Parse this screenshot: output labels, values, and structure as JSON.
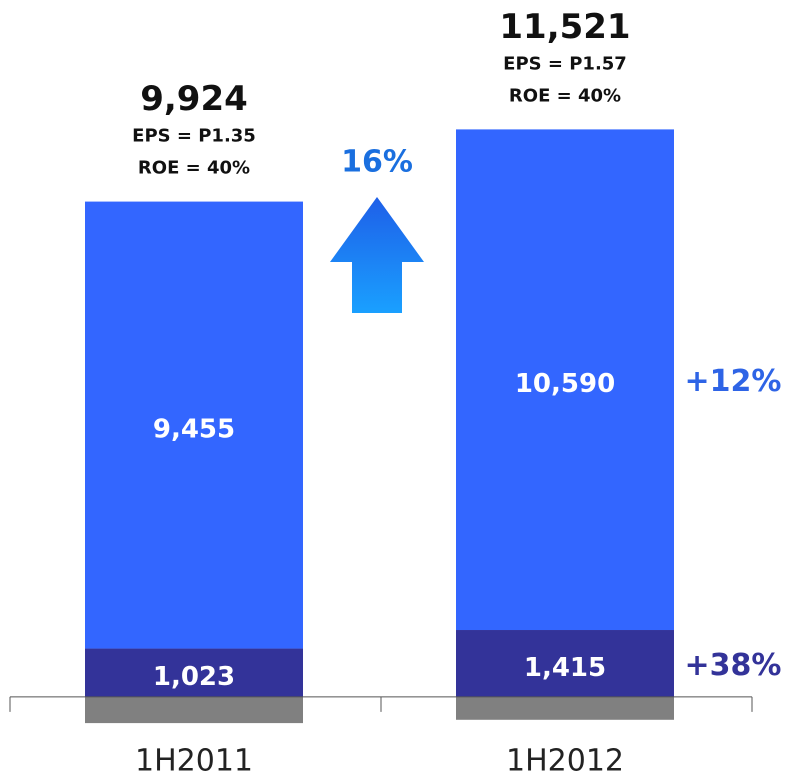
{
  "chart_data": {
    "type": "stacked_bar",
    "categories": [
      "1H2011",
      "1H2012"
    ],
    "series": [
      {
        "color": "#808080",
        "values": [
          -554,
          -484
        ]
      },
      {
        "color": "#333399",
        "values": [
          1023,
          1415
        ],
        "value_labels": [
          "1,023",
          "1,415"
        ],
        "growth_label": "+38%"
      },
      {
        "color": "#3366ff",
        "values": [
          9455,
          10590
        ],
        "value_labels": [
          "9,455",
          "10,590"
        ],
        "growth_label": "+12%"
      }
    ],
    "total_labels": [
      "9,924",
      "11,521"
    ],
    "eps_labels": [
      "EPS = P1.35",
      "EPS = P1.57"
    ],
    "roe_labels": [
      "ROE = 40%",
      "ROE = 40%"
    ],
    "growth_annotation": "16%",
    "ylim": [
      -1800,
      14700
    ]
  }
}
